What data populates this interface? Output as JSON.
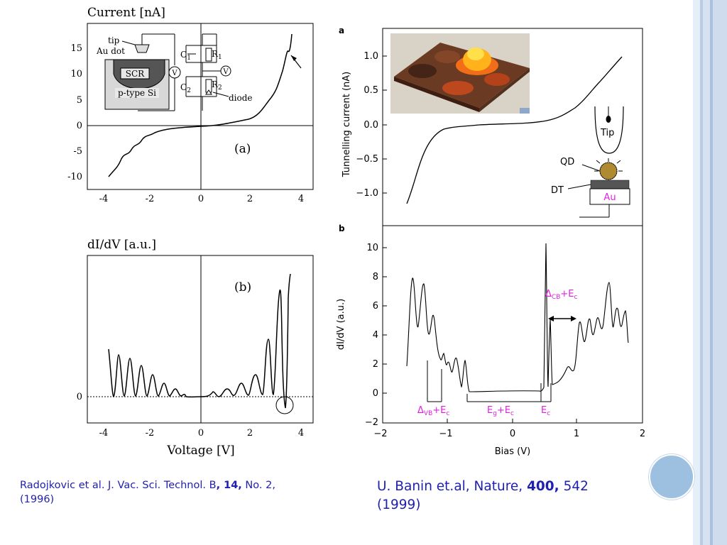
{
  "slide": {
    "citation_left": {
      "authors_journal": "Radojkovic et al. J. Vac. Sci. Technol. B",
      "volume_sep": ", 14,",
      "issue": " No. 2,",
      "year": "(1996)"
    },
    "citation_right": {
      "authors_journal": "U. Banin et.al, Nature, ",
      "volume": "400,",
      "page": " 542",
      "year": "(1999)"
    }
  },
  "figure_left": {
    "panel_a": {
      "ylabel": "Current [nA]",
      "label": "(a)",
      "yticks": [
        "15",
        "10",
        "5",
        "0",
        "-5",
        "-10"
      ],
      "xticks": [
        "-4",
        "-2",
        "0",
        "2",
        "4"
      ],
      "inset": {
        "tip": "tip",
        "au_dot": "Au dot",
        "scr": "SCR",
        "substrate": "p-type Si",
        "meter": "V",
        "c1": "C",
        "c1_sub": "1",
        "r1": "R",
        "r1_sub": "1",
        "c2": "C",
        "c2_sub": "2",
        "r2": "R",
        "r2_sub": "2",
        "diode": "diode"
      }
    },
    "panel_b": {
      "ylabel": "dI/dV [a.u.]",
      "label": "(b)",
      "ytick_zero": "0",
      "xticks": [
        "-4",
        "-2",
        "0",
        "2",
        "4"
      ],
      "xlabel": "Voltage [V]"
    }
  },
  "figure_right": {
    "panel_a": {
      "letter": "a",
      "ylabel": "Tunnelling current (nA)",
      "yticks": [
        "1.0",
        "0.5",
        "0.0",
        "−0.5",
        "−1.0"
      ],
      "labels": {
        "tip": "Tip",
        "qd": "QD",
        "dt": "DT",
        "au": "Au"
      }
    },
    "panel_b": {
      "letter": "b",
      "ylabel": "dI/dV (a.u.)",
      "yticks": [
        "10",
        "8",
        "6",
        "4",
        "2",
        "0",
        "−2"
      ],
      "xticks": [
        "−2",
        "−1",
        "0",
        "1",
        "2"
      ],
      "xlabel": "Bias (V)",
      "annotations": {
        "delta_cb": {
          "pre": "Δ",
          "sub": "CB",
          "post": "+E",
          "sub2": "c"
        },
        "delta_vb": {
          "pre": "Δ",
          "sub": "VB",
          "post": "+E",
          "sub2": "c"
        },
        "eg": {
          "pre": "E",
          "sub": "g",
          "post": "+E",
          "sub2": "c"
        },
        "ec": {
          "pre": "E",
          "sub": "c"
        }
      },
      "annotation_color": "#e020e0"
    }
  },
  "chart_data": [
    {
      "type": "line",
      "ylabel": "Current [nA]",
      "xlim": [
        -4.2,
        4.3
      ],
      "ylim": [
        -11.5,
        20
      ],
      "series": [
        {
          "x": [
            -3.7,
            -3.5,
            -3.3,
            -3.1,
            -2.9,
            -2.7,
            -2.5,
            -2.3,
            -2.1,
            -1.9,
            -1.7,
            -1.5,
            -1.3,
            -1.1,
            -0.9,
            -0.6,
            -0.3,
            0,
            0.3,
            0.6,
            0.9,
            1.2,
            1.5,
            1.8,
            2.0,
            2.2,
            2.4,
            2.6,
            2.8,
            3.0,
            3.2,
            3.3,
            3.4,
            3.5,
            3.55
          ],
          "y": [
            -10,
            -8.8,
            -8,
            -6.8,
            -6,
            -4.8,
            -4,
            -3.2,
            -2.5,
            -1.9,
            -1.4,
            -1,
            -0.7,
            -0.4,
            -0.3,
            -0.1,
            0,
            0,
            0,
            0.1,
            0.25,
            0.4,
            0.6,
            0.9,
            1.2,
            1.8,
            2.2,
            3.3,
            4,
            6,
            8,
            11,
            13,
            15,
            18
          ]
        }
      ]
    },
    {
      "type": "line",
      "ylabel": "dI/dV [a.u.]",
      "xlabel": "Voltage [V]",
      "xlim": [
        -4.2,
        4.3
      ],
      "ylim": [
        -1,
        10
      ],
      "series": [
        {
          "x": [
            -3.8,
            -3.6,
            -3.4,
            -3.2,
            -3.0,
            -2.8,
            -2.6,
            -2.4,
            -2.2,
            -2.0,
            -1.8,
            -1.6,
            -1.4,
            -1.2,
            -1.0,
            -0.8,
            -0.6,
            0.4,
            0.6,
            0.8,
            1.0,
            1.2,
            1.4,
            1.6,
            1.8,
            2.0,
            2.2,
            2.4,
            2.6,
            2.8,
            3.0,
            3.2,
            3.4,
            3.6,
            3.7
          ],
          "y": [
            3.4,
            0,
            3,
            0,
            2.7,
            0,
            2.2,
            0,
            1.6,
            0,
            1,
            0,
            0.7,
            0,
            0.4,
            0,
            0.1,
            0,
            0.5,
            0,
            0.5,
            0.1,
            0.8,
            0.2,
            1.5,
            0.3,
            2.5,
            0.4,
            3.6,
            0,
            6.8,
            0,
            8.3,
            -1,
            9.2
          ]
        }
      ]
    },
    {
      "type": "line",
      "ylabel": "Tunnelling current (nA)",
      "xlim": [
        -2,
        2
      ],
      "ylim": [
        -1.35,
        1.35
      ],
      "series": [
        {
          "x": [
            -1.6,
            -1.5,
            -1.4,
            -1.3,
            -1.2,
            -1.0,
            -0.8,
            -0.6,
            -0.4,
            -0.2,
            0,
            0.2,
            0.4,
            0.6,
            0.8,
            1.0,
            1.2,
            1.4,
            1.6,
            1.7
          ],
          "y": [
            -1.17,
            -0.85,
            -0.4,
            -0.25,
            -0.15,
            -0.08,
            -0.05,
            -0.03,
            -0.02,
            0,
            0,
            0.01,
            0.03,
            0.1,
            0.2,
            0.3,
            0.5,
            0.7,
            0.9,
            1.0
          ]
        }
      ]
    },
    {
      "type": "line",
      "ylabel": "dI/dV (a.u.)",
      "xlabel": "Bias (V)",
      "xlim": [
        -2,
        2
      ],
      "ylim": [
        -2,
        11
      ],
      "series": [
        {
          "x": [
            -1.6,
            -1.55,
            -1.5,
            -1.45,
            -1.4,
            -1.35,
            -1.3,
            -1.25,
            -1.2,
            -1.15,
            -1.1,
            -1.05,
            -1.0,
            -0.95,
            -0.9,
            -0.85,
            -0.8,
            -0.75,
            -0.7,
            -0.65,
            -0.6,
            0.0,
            0.4,
            0.45,
            0.48,
            0.5,
            0.55,
            0.6,
            0.7,
            0.8,
            0.85,
            0.9,
            0.95,
            1.0,
            1.1,
            1.2,
            1.3,
            1.4,
            1.5,
            1.6,
            1.7
          ],
          "y": [
            2,
            8,
            5,
            7.8,
            4,
            6,
            3,
            4,
            1.5,
            1,
            2.5,
            1.2,
            1.5,
            0.5,
            1,
            0.3,
            2.3,
            0.5,
            2.8,
            0.2,
            0,
            0,
            0,
            0,
            10.3,
            1,
            5.8,
            0.5,
            1,
            1.5,
            2,
            5,
            3.5,
            6,
            4.2,
            4.8,
            5.5,
            4,
            7.8,
            5,
            3.5
          ]
        }
      ]
    }
  ]
}
